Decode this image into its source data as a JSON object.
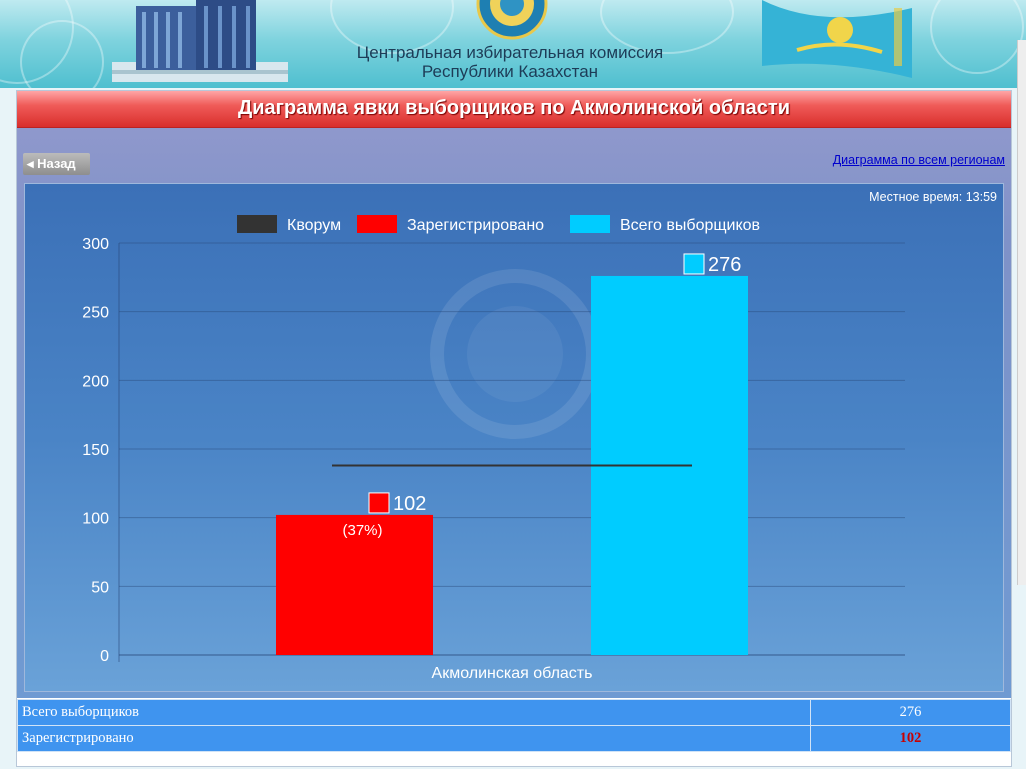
{
  "header": {
    "line1": "Центральная избирательная комиссия",
    "line2": "Республики Казахстан"
  },
  "page": {
    "title": "Диаграмма явки выборщиков по Акмолинской области",
    "back_label": "◂ Назад",
    "all_regions_link": "Диаграмма по всем регионам",
    "local_time": "Местное время: 13:59"
  },
  "legend": [
    {
      "label": "Кворум",
      "color": "#333333"
    },
    {
      "label": "Зарегистрировано",
      "color": "#ff0000"
    },
    {
      "label": "Всего выборщиков",
      "color": "#00ccff"
    }
  ],
  "chart_data": {
    "type": "bar",
    "categories": [
      "Акмолинская область"
    ],
    "series": [
      {
        "name": "Зарегистрировано",
        "values": [
          102
        ],
        "color": "#ff0000",
        "label": "102",
        "sublabel": "(37%)"
      },
      {
        "name": "Всего выборщиков",
        "values": [
          276
        ],
        "color": "#00ccff",
        "label": "276"
      }
    ],
    "quorum": {
      "name": "Кворум",
      "value": 138,
      "color": "#333333"
    },
    "ylim": [
      0,
      300
    ],
    "yticks": [
      "0",
      "50",
      "100",
      "150",
      "200",
      "250",
      "300"
    ],
    "grid": true,
    "legend_position": "top-center"
  },
  "stats": [
    {
      "label": "Всего выборщиков",
      "value": "276",
      "highlight": false
    },
    {
      "label": "Зарегистрировано",
      "value": "102",
      "highlight": true
    }
  ]
}
